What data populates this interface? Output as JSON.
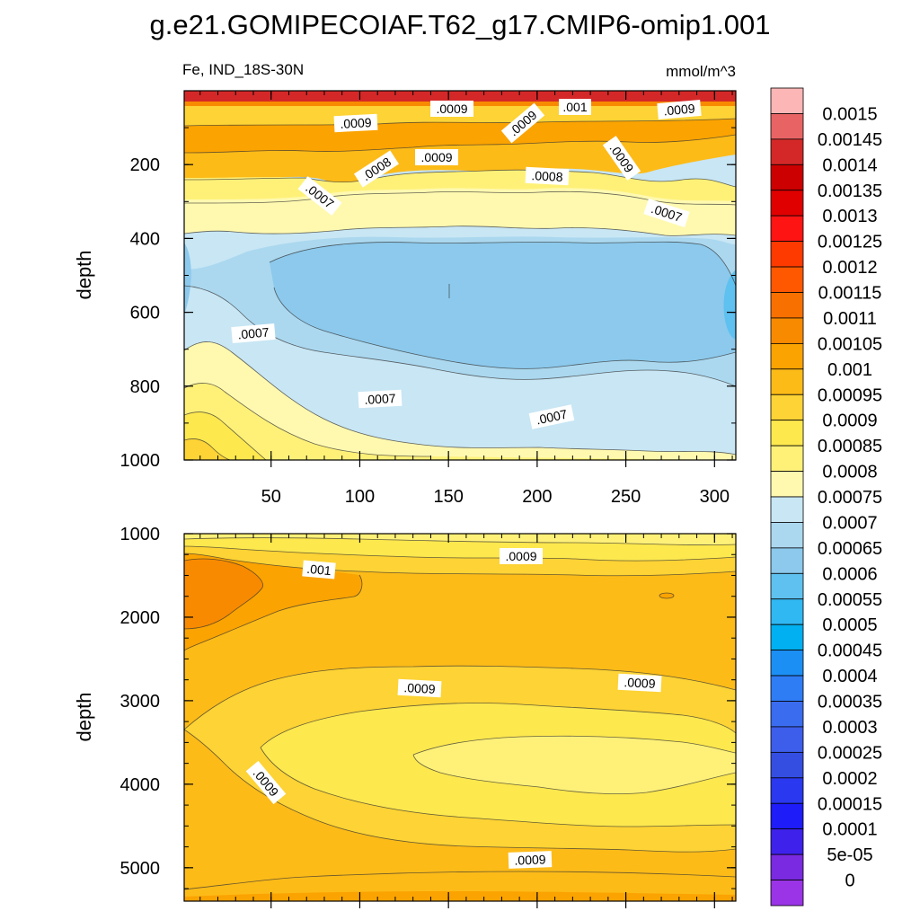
{
  "chart_data": {
    "type": "contour",
    "title": "g.e21.GOMIPECOIAF.T62_g17.CMIP6-omip1.001",
    "variable_label": "Fe, IND_18S-30N",
    "units_label": "mmol/m^3",
    "colorbar": {
      "labels": [
        "0.0015",
        "0.00145",
        "0.0014",
        "0.00135",
        "0.0013",
        "0.00125",
        "0.0012",
        "0.00115",
        "0.0011",
        "0.00105",
        "0.001",
        "0.00095",
        "0.0009",
        "0.00085",
        "0.0008",
        "0.00075",
        "0.0007",
        "0.00065",
        "0.0006",
        "0.00055",
        "0.0005",
        "0.00045",
        "0.0004",
        "0.00035",
        "0.0003",
        "0.00025",
        "0.0002",
        "0.00015",
        "0.0001",
        "5e-05",
        "0"
      ],
      "colors": [
        "#fcb6b6",
        "#e86464",
        "#d42828",
        "#cc0000",
        "#e00000",
        "#ff1414",
        "#ff3a00",
        "#ff5800",
        "#f87000",
        "#f88a00",
        "#fba300",
        "#fdbb18",
        "#fdd335",
        "#fde84e",
        "#fff178",
        "#fff9b0",
        "#c8e6f4",
        "#abd8ef",
        "#8cc9ec",
        "#5ec1f0",
        "#30b8f2",
        "#00b0f0",
        "#1c8ff5",
        "#2f7df5",
        "#3a6cf0",
        "#3c5eea",
        "#344ee2",
        "#2a38f0",
        "#1e1cf8",
        "#3e22ec",
        "#7a2ae0",
        "#9a34e6"
      ]
    },
    "panels": [
      {
        "name": "upper",
        "ylabel": "depth",
        "ylim": [
          1000,
          0
        ],
        "xlim": [
          1,
          312
        ],
        "yticks": [
          "200",
          "400",
          "600",
          "800",
          "1000"
        ],
        "xtick_labels": [
          "50",
          "100",
          "150",
          "200",
          "250",
          "300"
        ],
        "contour_labels": [
          ".0009",
          ".0009",
          ".0009",
          ".001",
          ".0009",
          ".0009",
          ".0008",
          ".0009",
          ".0008",
          ".0007",
          ".0007",
          ".0007",
          ".0007",
          ".0007"
        ]
      },
      {
        "name": "lower",
        "ylabel": "depth",
        "ylim": [
          5400,
          1000
        ],
        "xlim": [
          1,
          312
        ],
        "yticks": [
          "1000",
          "2000",
          "3000",
          "4000",
          "5000"
        ],
        "contour_labels": [
          ".001",
          ".0009",
          ".0009",
          ".0009",
          ".0009",
          ".0009"
        ]
      }
    ]
  }
}
